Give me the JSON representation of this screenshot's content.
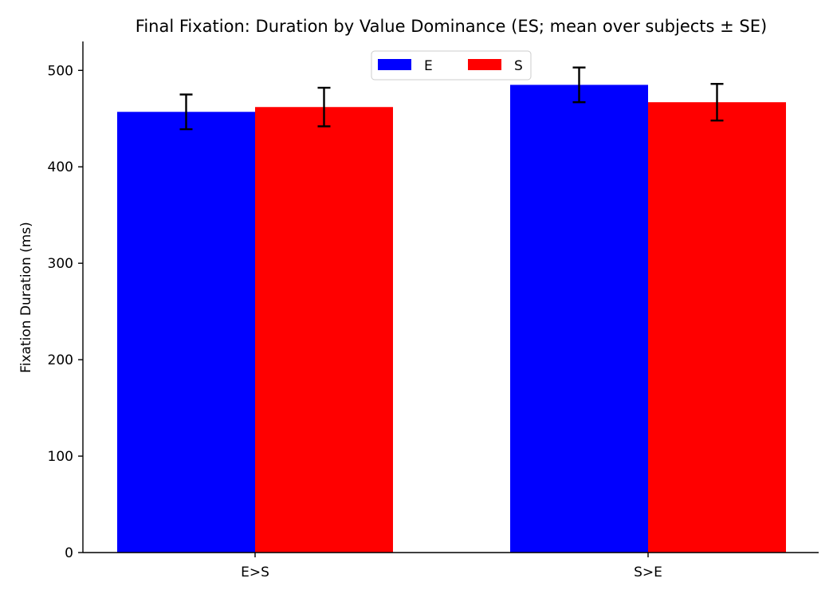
{
  "chart_data": {
    "type": "bar",
    "title": "Final Fixation: Duration by Value Dominance (ES; mean over subjects ± SE)",
    "xlabel": "",
    "ylabel": "Fixation Duration (ms)",
    "categories": [
      "E>S",
      "S>E"
    ],
    "series": [
      {
        "name": "E",
        "color": "#0000ff",
        "values": [
          457,
          485
        ],
        "errors": [
          18,
          18
        ]
      },
      {
        "name": "S",
        "color": "#ff0000",
        "values": [
          462,
          467
        ],
        "errors": [
          20,
          19
        ]
      }
    ],
    "ylim": [
      0,
      530
    ],
    "yticks": [
      0,
      100,
      200,
      300,
      400,
      500
    ],
    "grid": false,
    "legend": {
      "position": "top-center",
      "columns": 2
    }
  }
}
